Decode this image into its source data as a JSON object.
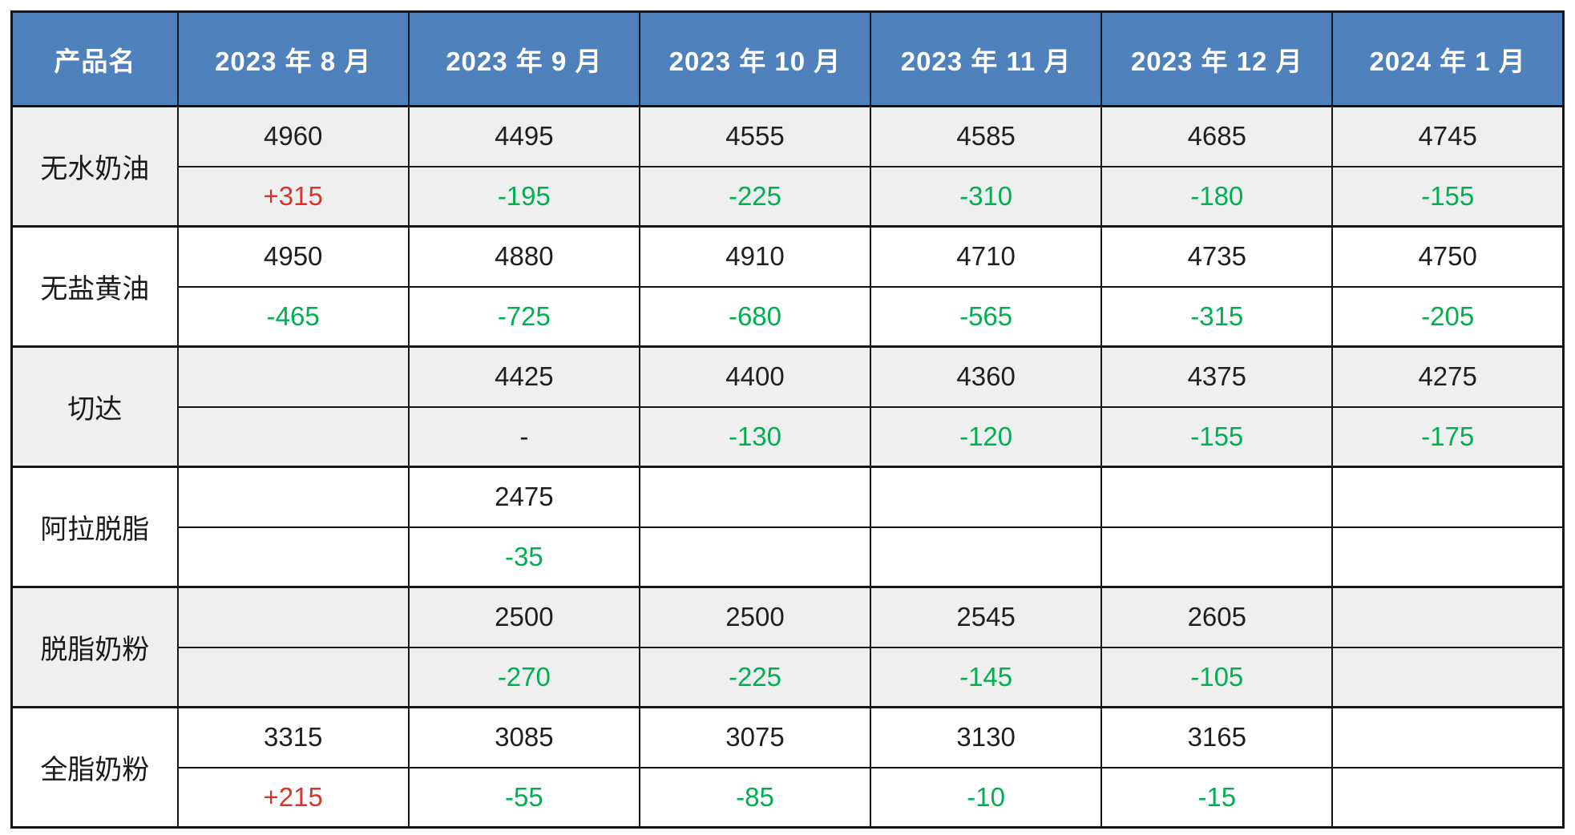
{
  "table": {
    "columns": [
      "产品名",
      "2023 年 8 月",
      "2023 年 9 月",
      "2023 年 10 月",
      "2023 年 11 月",
      "2023 年 12 月",
      "2024 年 1 月"
    ],
    "products": [
      {
        "name": "无水奶油",
        "prices": [
          "4960",
          "4495",
          "4555",
          "4585",
          "4685",
          "4745"
        ],
        "changes": [
          "+315",
          "-195",
          "-225",
          "-310",
          "-180",
          "-155"
        ]
      },
      {
        "name": "无盐黄油",
        "prices": [
          "4950",
          "4880",
          "4910",
          "4710",
          "4735",
          "4750"
        ],
        "changes": [
          "-465",
          "-725",
          "-680",
          "-565",
          "-315",
          "-205"
        ]
      },
      {
        "name": "切达",
        "prices": [
          "",
          "4425",
          "4400",
          "4360",
          "4375",
          "4275"
        ],
        "changes": [
          "",
          "-",
          "-130",
          "-120",
          "-155",
          "-175"
        ]
      },
      {
        "name": "阿拉脱脂",
        "prices": [
          "",
          "2475",
          "",
          "",
          "",
          ""
        ],
        "changes": [
          "",
          "-35",
          "",
          "",
          "",
          ""
        ]
      },
      {
        "name": "脱脂奶粉",
        "prices": [
          "",
          "2500",
          "2500",
          "2545",
          "2605",
          ""
        ],
        "changes": [
          "",
          "-270",
          "-225",
          "-145",
          "-105",
          ""
        ]
      },
      {
        "name": "全脂奶粉",
        "prices": [
          "3315",
          "3085",
          "3075",
          "3130",
          "3165",
          ""
        ],
        "changes": [
          "+215",
          "-55",
          "-85",
          "-10",
          "-15",
          ""
        ]
      }
    ],
    "colors": {
      "header_bg": "#4f81bd",
      "header_text": "#ffffff",
      "band_gray": "#efefef",
      "band_white": "#ffffff",
      "up_red": "#d9342b",
      "down_green": "#00b050",
      "neutral": "#1f1f1f",
      "border": "#151515"
    }
  }
}
